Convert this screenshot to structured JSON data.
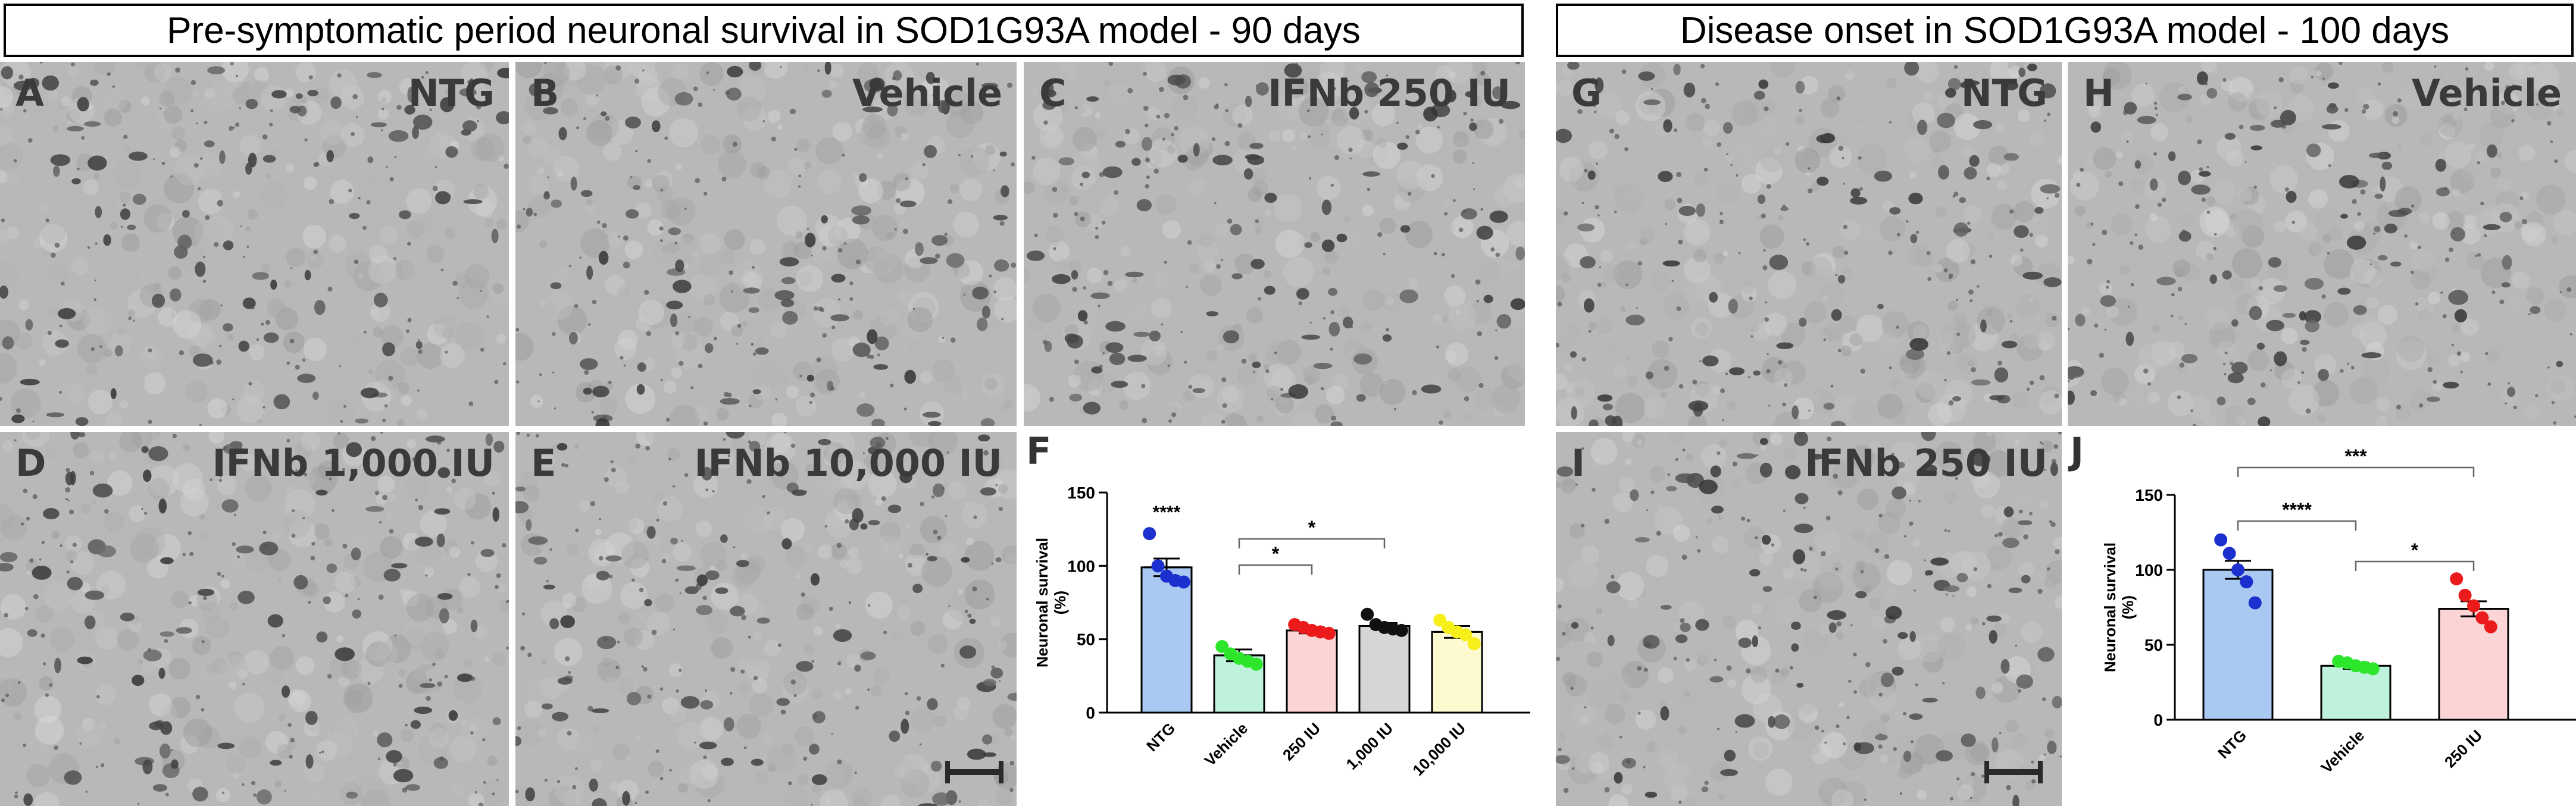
{
  "titles": {
    "left": "Pre-symptomatic period neuronal survival in SOD1G93A model - 90 days",
    "right": "Disease onset in SOD1G93A model - 100 days"
  },
  "panels": [
    {
      "letter": "A",
      "group": "NTG"
    },
    {
      "letter": "B",
      "group": "Vehicle"
    },
    {
      "letter": "C",
      "group": "IFNb 250 IU"
    },
    {
      "letter": "D",
      "group": "IFNb 1,000 IU"
    },
    {
      "letter": "E",
      "group": "IFNb 10,000 IU"
    },
    {
      "letter": "G",
      "group": "NTG"
    },
    {
      "letter": "H",
      "group": "Vehicle"
    },
    {
      "letter": "I",
      "group": "IFNb 250 IU"
    }
  ],
  "chart_data": [
    {
      "panel": "F",
      "type": "bar",
      "ylabel": "Neuronal survival (%)",
      "ylim": [
        0,
        150
      ],
      "yticks": [
        0,
        50,
        100,
        150
      ],
      "categories": [
        "NTG",
        "Vehicle",
        "250 IU",
        "1,000 IU",
        "10,000 IU"
      ],
      "values": [
        99,
        39,
        56,
        59,
        55
      ],
      "errors": [
        6,
        4,
        2,
        2,
        4
      ],
      "fill_colors": [
        "#a9c8f2",
        "#bff2dc",
        "#fbd5d5",
        "#d6d6d6",
        "#fdfad0"
      ],
      "point_colors": [
        "#1c2fcf",
        "#2de52a",
        "#ec1b1b",
        "#111111",
        "#f6ef19"
      ],
      "points": [
        [
          122,
          100,
          93,
          90,
          89
        ],
        [
          45,
          40,
          37,
          35,
          33
        ],
        [
          60,
          58,
          56,
          55,
          54
        ],
        [
          67,
          60,
          58,
          57,
          56
        ],
        [
          63,
          58,
          55,
          53,
          47
        ]
      ],
      "annotations": [
        {
          "category": "NTG",
          "text": "****"
        }
      ],
      "brackets": [
        {
          "from": "Vehicle",
          "to": "250 IU",
          "text": "*"
        },
        {
          "from": "Vehicle",
          "to": "1,000 IU",
          "text": "*"
        }
      ]
    },
    {
      "panel": "J",
      "type": "bar",
      "ylabel": "Neuronal survival (%)",
      "ylim": [
        0,
        150
      ],
      "yticks": [
        0,
        50,
        100,
        150
      ],
      "categories": [
        "NTG",
        "Vehicle",
        "250 IU"
      ],
      "values": [
        100,
        36,
        74
      ],
      "errors": [
        6,
        2,
        5
      ],
      "fill_colors": [
        "#a9c8f2",
        "#bff2dc",
        "#fbd5d5"
      ],
      "point_colors": [
        "#1c2fcf",
        "#2de52a",
        "#ec1b1b"
      ],
      "points": [
        [
          120,
          111,
          100,
          92,
          78
        ],
        [
          39,
          38,
          36,
          35,
          34
        ],
        [
          94,
          83,
          76,
          68,
          62
        ]
      ],
      "annotations": [],
      "brackets": [
        {
          "from": "NTG",
          "to": "Vehicle",
          "text": "****"
        },
        {
          "from": "NTG",
          "to": "250 IU",
          "text": "***"
        },
        {
          "from": "Vehicle",
          "to": "250 IU",
          "text": "*"
        }
      ]
    }
  ]
}
